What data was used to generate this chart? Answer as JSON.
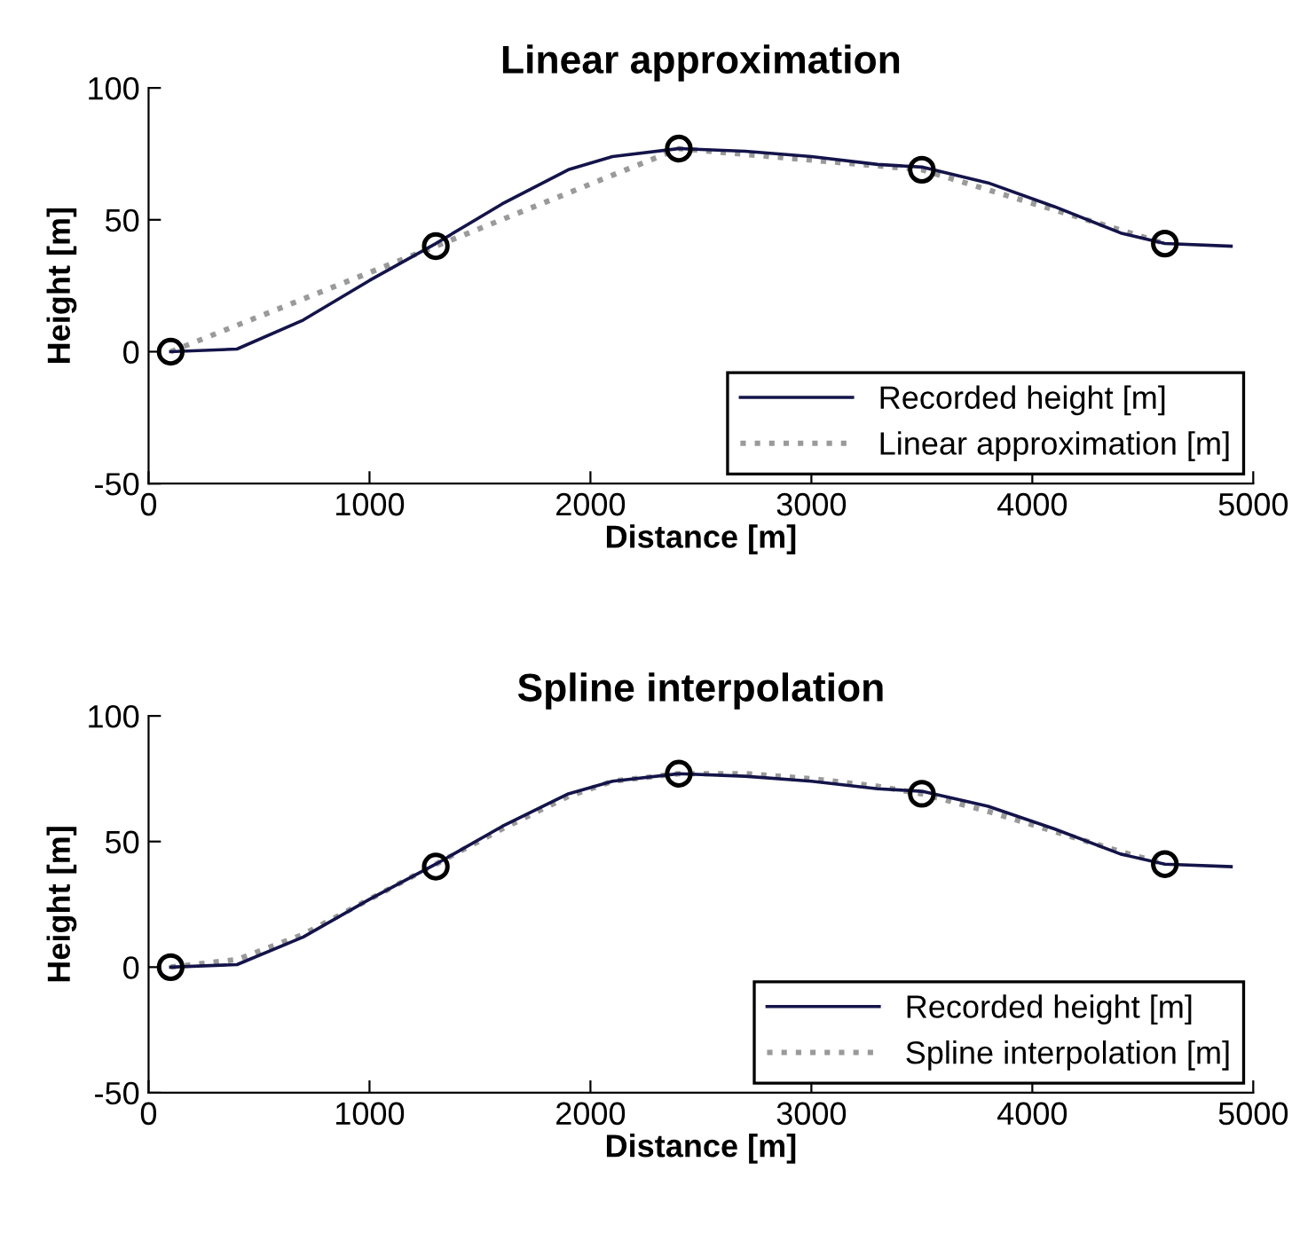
{
  "chart_data": [
    {
      "type": "line",
      "title": "Linear approximation",
      "xlabel": "Distance [m]",
      "ylabel": "Height [m]",
      "xlim": [
        0,
        5000
      ],
      "xticks": [
        0,
        1000,
        2000,
        3000,
        4000,
        5000
      ],
      "ylim": [
        -50,
        100
      ],
      "yticks": [
        -50,
        0,
        50,
        100
      ],
      "grid": false,
      "legend": "bottom right",
      "series": [
        {
          "name": "Recorded height [m]",
          "color": "#14144a",
          "line_style": "solid",
          "marker": "none",
          "x": [
            100,
            400,
            700,
            1000,
            1300,
            1600,
            1900,
            2100,
            2400,
            2700,
            3000,
            3300,
            3500,
            3800,
            4100,
            4400,
            4600,
            4900
          ],
          "values": [
            0,
            1,
            12,
            27,
            41,
            56,
            69,
            74,
            77,
            76,
            74,
            71,
            70,
            64,
            55,
            45,
            41,
            40
          ]
        },
        {
          "name": "Linear approximation [m]",
          "color": "#9a9a9a",
          "line_style": "dotted",
          "marker": "none",
          "x": [
            100,
            1300,
            2400,
            3500,
            4600
          ],
          "values": [
            0,
            40,
            77,
            69,
            41
          ]
        },
        {
          "type": "scatter",
          "color": "#000000",
          "marker": "circle",
          "x": [
            100,
            1300,
            2400,
            3500,
            4600
          ],
          "values": [
            0,
            40,
            77,
            69,
            41
          ]
        }
      ]
    },
    {
      "type": "line",
      "title": "Spline interpolation",
      "xlabel": "Distance [m]",
      "ylabel": "Height [m]",
      "xlim": [
        0,
        5000
      ],
      "xticks": [
        0,
        1000,
        2000,
        3000,
        4000,
        5000
      ],
      "ylim": [
        -50,
        100
      ],
      "yticks": [
        -50,
        0,
        50,
        100
      ],
      "grid": false,
      "legend": "bottom right",
      "series": [
        {
          "name": "Recorded height [m]",
          "color": "#14144a",
          "line_style": "solid",
          "marker": "none",
          "x": [
            100,
            400,
            700,
            1000,
            1300,
            1600,
            1900,
            2100,
            2400,
            2700,
            3000,
            3300,
            3500,
            3800,
            4100,
            4400,
            4600,
            4900
          ],
          "values": [
            0,
            1,
            12,
            27,
            41,
            56,
            69,
            74,
            77,
            76,
            74,
            71,
            70,
            64,
            55,
            45,
            41,
            40
          ]
        },
        {
          "name": "Spline interpolation [m]",
          "color": "#9a9a9a",
          "line_style": "dotted",
          "marker": "none",
          "x": [
            100,
            400,
            700,
            1000,
            1300,
            1600,
            1900,
            2100,
            2400,
            2700,
            3000,
            3300,
            3500,
            3800,
            4100,
            4400,
            4600
          ],
          "values": [
            0,
            3,
            13,
            27,
            41,
            55,
            68,
            74,
            77,
            77,
            75,
            72,
            69,
            62,
            54,
            46,
            41
          ]
        },
        {
          "type": "scatter",
          "color": "#000000",
          "marker": "circle",
          "x": [
            100,
            1300,
            2400,
            3500,
            4600
          ],
          "values": [
            0,
            40,
            77,
            69,
            41
          ]
        }
      ]
    }
  ]
}
